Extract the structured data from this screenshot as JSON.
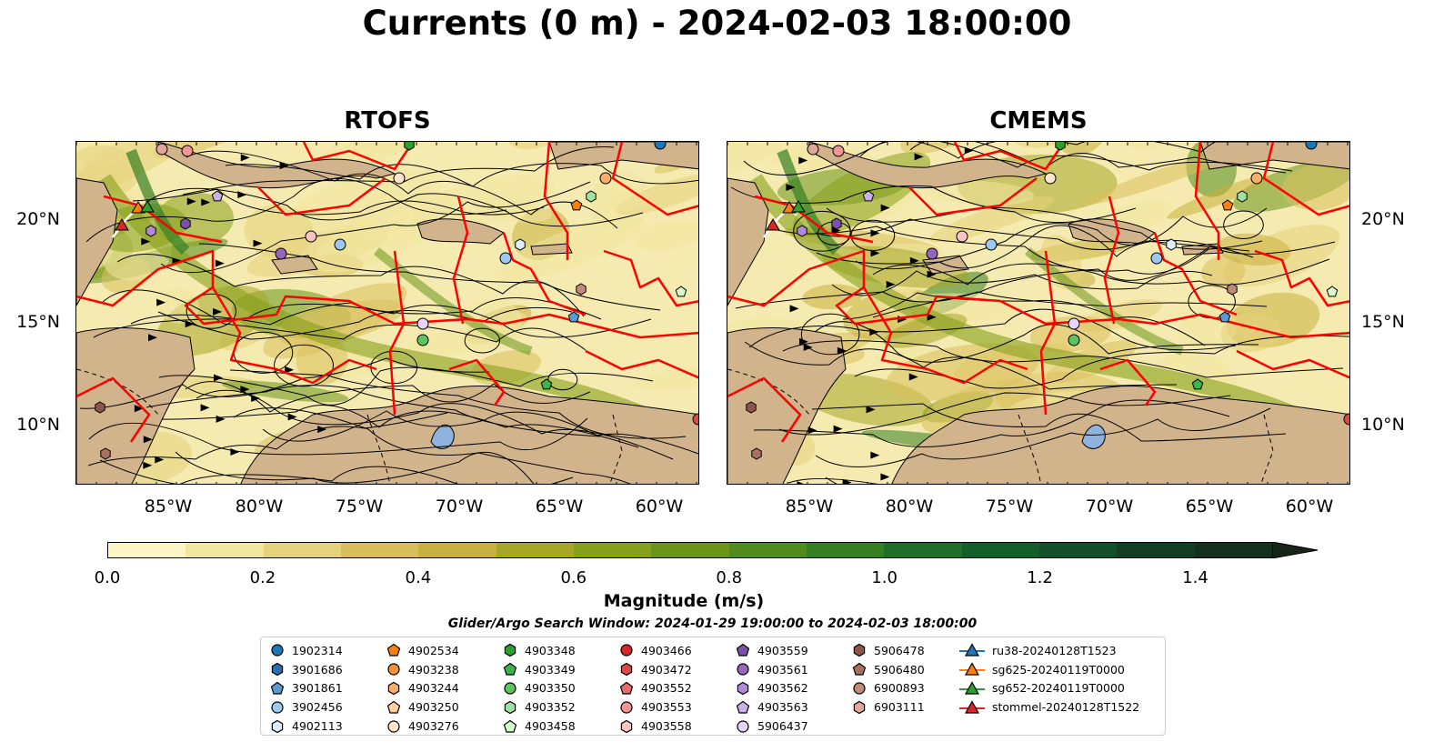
{
  "title": "Currents (0 m) - 2024-02-03 18:00:00",
  "panels": [
    {
      "title": "RTOFS"
    },
    {
      "title": "CMEMS"
    }
  ],
  "axes": {
    "lon_labels": [
      "85°W",
      "80°W",
      "75°W",
      "70°W",
      "65°W",
      "60°W"
    ],
    "lat_labels": [
      "20°N",
      "15°N",
      "10°N"
    ]
  },
  "colorbar": {
    "label": "Magnitude (m/s)",
    "ticks": [
      "0.0",
      "0.2",
      "0.4",
      "0.6",
      "0.8",
      "1.0",
      "1.2",
      "1.4"
    ],
    "range": [
      0,
      1.5
    ],
    "extend": "max",
    "colors": [
      "#fcf7c4",
      "#f1e69e",
      "#e5d27b",
      "#d9bf5c",
      "#c8b13e",
      "#a6a628",
      "#87a01c",
      "#6a9519",
      "#4f8b1d",
      "#357f22",
      "#1f6f28",
      "#145e2b",
      "#11502a",
      "#123f24",
      "#15301d",
      "#172519"
    ]
  },
  "search_window": "Glider/Argo Search Window: 2024-01-29 19:00:00 to 2024-02-03 18:00:00",
  "colors": {
    "land": "#d2b48c",
    "contour": "#ff0000",
    "ocean_low": "#f5ebb0"
  },
  "legend": [
    [
      {
        "label": "1902314",
        "marker": "circle",
        "color": "#1f77b4"
      },
      {
        "label": "3901686",
        "marker": "hexagon",
        "color": "#2a6fb0"
      },
      {
        "label": "3901861",
        "marker": "pentagon",
        "color": "#5b9bd5"
      },
      {
        "label": "3902456",
        "marker": "circle",
        "color": "#9cc9ef"
      },
      {
        "label": "4902113",
        "marker": "hexagon",
        "color": "#deeefb"
      }
    ],
    [
      {
        "label": "4902534",
        "marker": "pentagon",
        "color": "#ff7f0e"
      },
      {
        "label": "4903238",
        "marker": "circle",
        "color": "#f5913a"
      },
      {
        "label": "4903244",
        "marker": "hexagon",
        "color": "#fbae6b"
      },
      {
        "label": "4903250",
        "marker": "pentagon",
        "color": "#fdd0a2"
      },
      {
        "label": "4903276",
        "marker": "circle",
        "color": "#fee6ce"
      }
    ],
    [
      {
        "label": "4903348",
        "marker": "hexagon",
        "color": "#2ca02c"
      },
      {
        "label": "4903349",
        "marker": "pentagon",
        "color": "#3cb44b"
      },
      {
        "label": "4903350",
        "marker": "circle",
        "color": "#5ec45e"
      },
      {
        "label": "4903352",
        "marker": "hexagon",
        "color": "#9fe29f"
      },
      {
        "label": "4903458",
        "marker": "pentagon",
        "color": "#d8f8d0"
      }
    ],
    [
      {
        "label": "4903466",
        "marker": "circle",
        "color": "#d62728"
      },
      {
        "label": "4903472",
        "marker": "hexagon",
        "color": "#e04848"
      },
      {
        "label": "4903552",
        "marker": "pentagon",
        "color": "#e86a6a"
      },
      {
        "label": "4903553",
        "marker": "circle",
        "color": "#f29595"
      },
      {
        "label": "4903558",
        "marker": "hexagon",
        "color": "#fbc4c4"
      }
    ],
    [
      {
        "label": "4903559",
        "marker": "pentagon",
        "color": "#7b52ab"
      },
      {
        "label": "4903561",
        "marker": "circle",
        "color": "#9467bd"
      },
      {
        "label": "4903562",
        "marker": "hexagon",
        "color": "#b08ad6"
      },
      {
        "label": "4903563",
        "marker": "pentagon",
        "color": "#cbb1ea"
      },
      {
        "label": "5906437",
        "marker": "circle",
        "color": "#e6d5f7"
      }
    ],
    [
      {
        "label": "5906478",
        "marker": "hexagon",
        "color": "#8c564b"
      },
      {
        "label": "5906480",
        "marker": "pentagon",
        "color": "#a8705f"
      },
      {
        "label": "6900893",
        "marker": "circle",
        "color": "#c08a7a"
      },
      {
        "label": "6903111",
        "marker": "hexagon",
        "color": "#e3a79a"
      }
    ],
    [
      {
        "label": "ru38-20240128T1523",
        "marker": "triangle-line",
        "color": "#1f77b4"
      },
      {
        "label": "sg625-20240119T0000",
        "marker": "triangle-line",
        "color": "#ff7f0e"
      },
      {
        "label": "sg652-20240119T0000",
        "marker": "triangle-line",
        "color": "#2ca02c"
      },
      {
        "label": "stommel-20240128T1522",
        "marker": "triangle-line",
        "color": "#d62728"
      }
    ]
  ]
}
